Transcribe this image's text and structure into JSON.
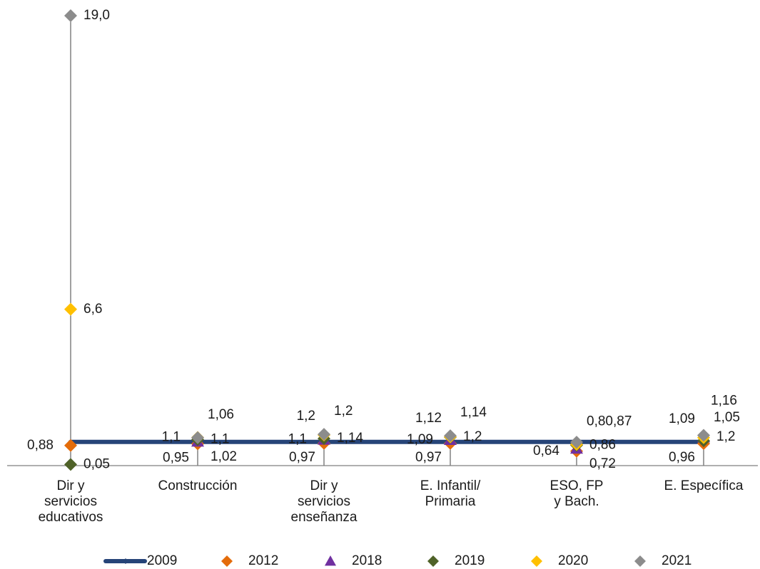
{
  "chart_data": {
    "type": "line",
    "categories": [
      [
        "Dir y",
        "servicios",
        "educativos"
      ],
      [
        "Construcción"
      ],
      [
        "Dir y",
        "servicios",
        "enseñanza"
      ],
      [
        "E. Infantil/",
        "Primaria"
      ],
      [
        "ESO, FP",
        "y Bach."
      ],
      [
        "E. Específica"
      ]
    ],
    "series": [
      {
        "name": "2009",
        "marker": "line-diamond",
        "color": "#264478",
        "values": [
          1,
          1,
          1,
          1,
          1,
          1
        ]
      },
      {
        "name": "2012",
        "marker": "diamond",
        "color": "#E46C0A",
        "values": [
          0.88,
          0.95,
          0.97,
          0.97,
          0.64,
          0.96
        ]
      },
      {
        "name": "2018",
        "marker": "triangle",
        "color": "#7030A0",
        "values": [
          null,
          1.02,
          1.1,
          1.09,
          0.72,
          1.2
        ]
      },
      {
        "name": "2019",
        "marker": "diamond",
        "color": "#4F6228",
        "values": [
          0.05,
          1.1,
          1.14,
          1.2,
          0.86,
          1.05
        ]
      },
      {
        "name": "2020",
        "marker": "diamond",
        "color": "#FFC000",
        "values": [
          6.6,
          1.1,
          1.2,
          1.12,
          0.8,
          1.09
        ]
      },
      {
        "name": "2021",
        "marker": "diamond",
        "color": "#8C8C8C",
        "values": [
          19.0,
          1.06,
          1.2,
          1.14,
          0.87,
          1.16
        ]
      }
    ],
    "data_labels": [
      [
        {
          "text": "19,0",
          "series": 5,
          "side": "right"
        },
        {
          "text": "6,6",
          "series": 4,
          "side": "right"
        },
        {
          "text": "0,88",
          "series": 1,
          "side": "left"
        },
        {
          "text": "0,05",
          "series": 3,
          "side": "right"
        }
      ],
      [
        {
          "text": "1,06",
          "series": 5,
          "side": "right-high"
        },
        {
          "text": "1,1",
          "series": 4,
          "side": "left"
        },
        {
          "text": "1,1",
          "series": 3,
          "side": "right"
        },
        {
          "text": "0,95",
          "series": 1,
          "side": "left-low"
        },
        {
          "text": "1,02",
          "series": 2,
          "side": "right-low"
        }
      ],
      [
        {
          "text": "1,2",
          "series": 4,
          "side": "left-high"
        },
        {
          "text": "1,2",
          "series": 5,
          "side": "right-high"
        },
        {
          "text": "1,1",
          "series": 2,
          "side": "left"
        },
        {
          "text": "1,14",
          "series": 3,
          "side": "right"
        },
        {
          "text": "0,97",
          "series": 1,
          "side": "left-low"
        }
      ],
      [
        {
          "text": "1,12",
          "series": 4,
          "side": "left-high"
        },
        {
          "text": "1,14",
          "series": 5,
          "side": "right-high"
        },
        {
          "text": "1,09",
          "series": 2,
          "side": "left"
        },
        {
          "text": "1,2",
          "series": 3,
          "side": "right"
        },
        {
          "text": "0,97",
          "series": 1,
          "side": "left-low"
        }
      ],
      [
        {
          "text": "0,80,87",
          "series": 4,
          "side": "right-high"
        },
        {
          "text": "0,64",
          "series": 1,
          "side": "left"
        },
        {
          "text": "0,86",
          "series": 3,
          "side": "right"
        },
        {
          "text": "0,72",
          "series": 2,
          "side": "right-low"
        }
      ],
      [
        {
          "text": "1,16",
          "series": 5,
          "side": "right-top"
        },
        {
          "text": "1,09",
          "series": 4,
          "side": "left-high"
        },
        {
          "text": "1,05",
          "series": 3,
          "side": "right-high"
        },
        {
          "text": "1,2",
          "series": 2,
          "side": "right"
        },
        {
          "text": "0,96",
          "series": 1,
          "side": "left-low"
        }
      ]
    ],
    "ylim": [
      0,
      20
    ],
    "grid": false,
    "legend": "bottom"
  }
}
